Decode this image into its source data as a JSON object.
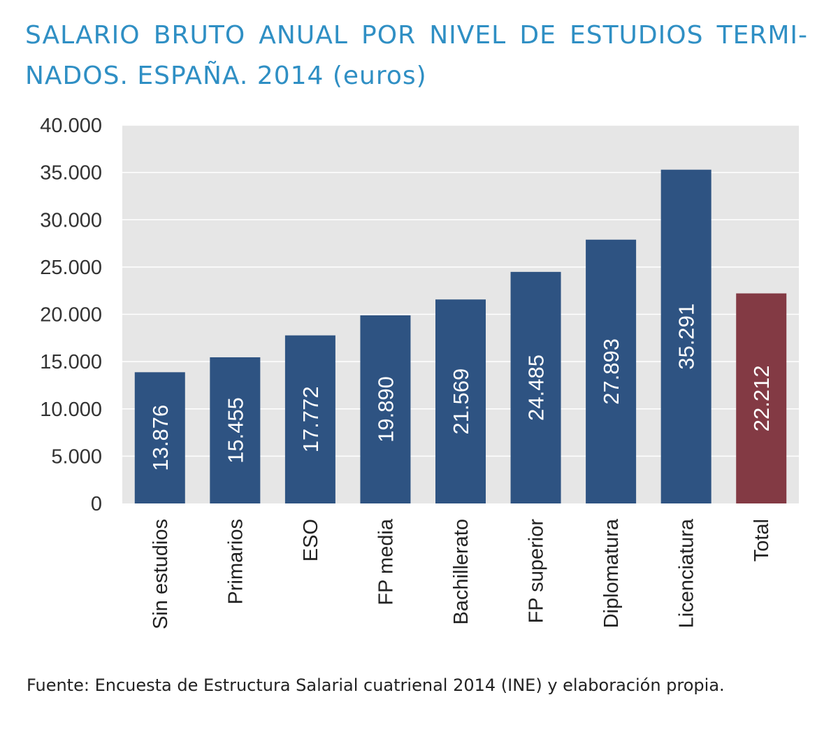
{
  "header": {
    "title": "SALARIO BRUTO ANUAL POR NIVEL DE ESTUDIOS TERMI- NADOS. ESPAÑA. 2014 (euros)"
  },
  "footer": {
    "source": "Fuente: Encuesta de Estructura Salarial cuatrienal 2014 (INE) y elaboración propia."
  },
  "chart_data": {
    "type": "bar",
    "title": "SALARIO BRUTO ANUAL POR NIVEL DE ESTUDIOS TERMI- NADOS. ESPAÑA. 2014 (euros)",
    "categories": [
      "Sin estudios",
      "Primarios",
      "ESO",
      "FP media",
      "Bachillerato",
      "FP superior",
      "Diplomatura",
      "Licenciatura",
      "Total"
    ],
    "values": [
      13876,
      15455,
      17772,
      19890,
      21569,
      24485,
      27893,
      35291,
      22212
    ],
    "value_labels": [
      "13.876",
      "15.455",
      "17.772",
      "19.890",
      "21.569",
      "24.485",
      "27.893",
      "35.291",
      "22.212"
    ],
    "ylim": [
      0,
      40000
    ],
    "yticks": [
      0,
      5000,
      10000,
      15000,
      20000,
      25000,
      30000,
      35000,
      40000
    ],
    "ytick_labels": [
      "0",
      "5.000",
      "10.000",
      "15.000",
      "20.000",
      "25.000",
      "30.000",
      "35.000",
      "40.000"
    ],
    "xlabel": "",
    "ylabel": "",
    "grid": true,
    "colors": {
      "bar": "#2e5382",
      "total_bar": "#833a44",
      "plot_background": "#e6e6e6",
      "gridline": "#ffffff",
      "title": "#2f8fc4"
    }
  }
}
